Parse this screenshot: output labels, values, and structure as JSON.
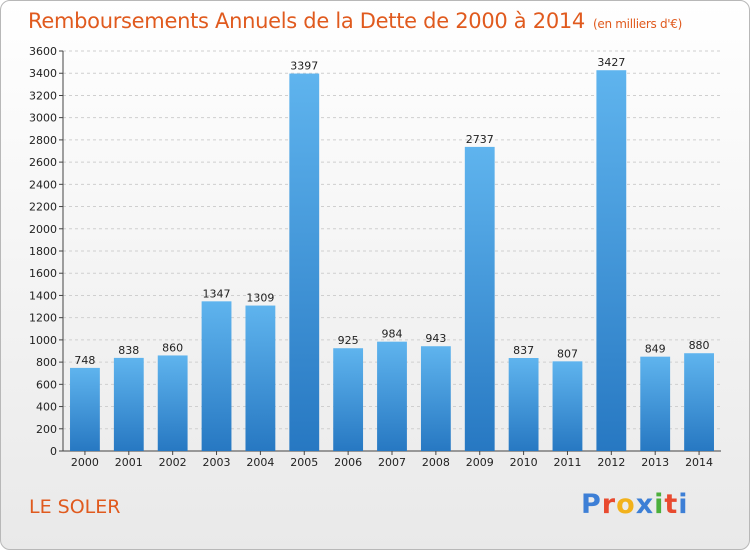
{
  "chart_data": {
    "type": "bar",
    "title": "Remboursements Annuels de la Dette de 2000 à 2014",
    "unit_note": "(en milliers d'€)",
    "categories": [
      "2000",
      "2001",
      "2002",
      "2003",
      "2004",
      "2005",
      "2006",
      "2007",
      "2008",
      "2009",
      "2010",
      "2011",
      "2012",
      "2013",
      "2014"
    ],
    "values": [
      748,
      838,
      860,
      1347,
      1309,
      3397,
      925,
      984,
      943,
      2737,
      837,
      807,
      3427,
      849,
      880
    ],
    "ylim": [
      0,
      3600
    ],
    "yticks": [
      0,
      200,
      400,
      600,
      800,
      1000,
      1200,
      1400,
      1600,
      1800,
      2000,
      2200,
      2400,
      2600,
      2800,
      3000,
      3200,
      3400,
      3600
    ],
    "grid": true,
    "bar_color": "#3d9ae2",
    "title_color": "#e05a1e"
  },
  "commune": "LE SOLER",
  "logo": {
    "text": "Proxiti",
    "letters": [
      "P",
      "r",
      "o",
      "x",
      "i",
      "t",
      "i"
    ],
    "colors": [
      "#3d7fd6",
      "#e84a2f",
      "#f2b21c",
      "#3d7fd6",
      "#4caf3b",
      "#e84a2f",
      "#3d7fd6"
    ]
  }
}
